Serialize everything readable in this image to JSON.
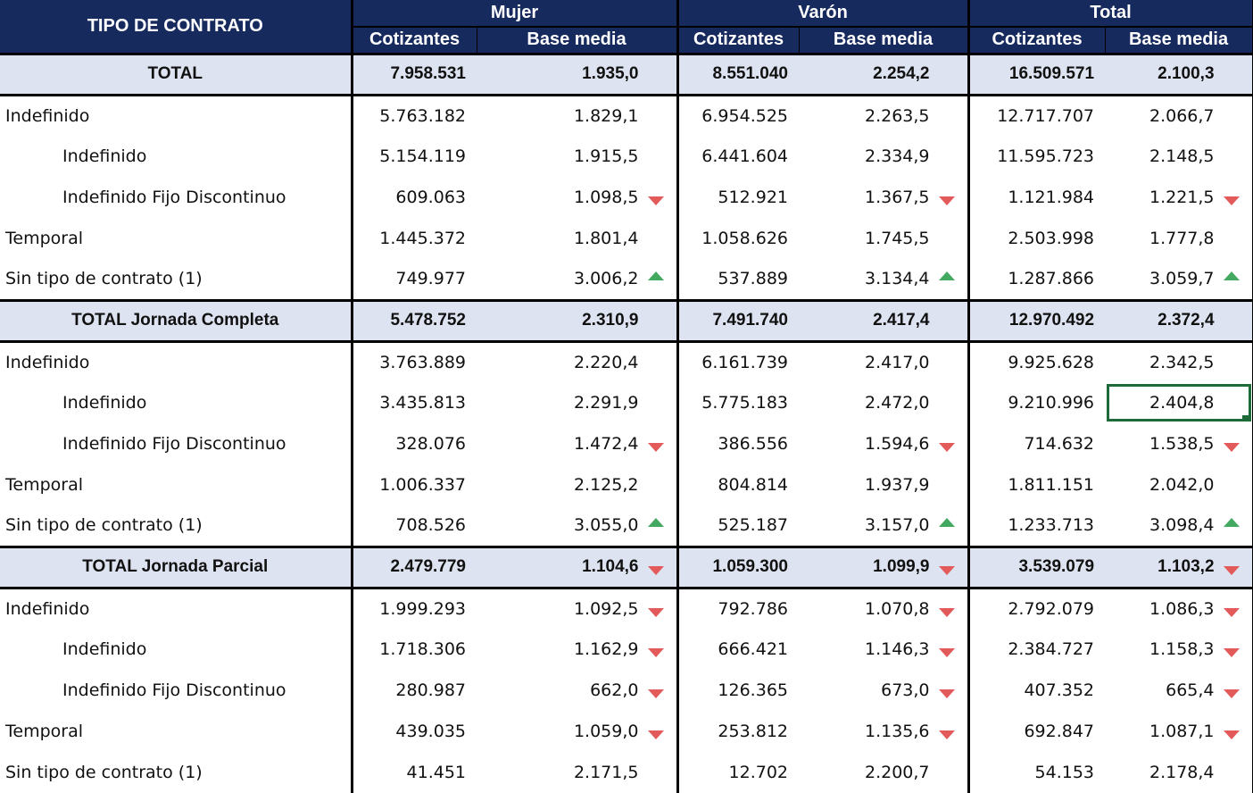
{
  "header": {
    "tipo_label": "TIPO DE CONTRATO",
    "groups": [
      "Mujer",
      "Varón",
      "Total"
    ],
    "sub": [
      "Cotizantes",
      "Base media",
      "Cotizantes",
      "Base media",
      "Cotizantes",
      "Base media"
    ]
  },
  "rows": [
    {
      "label": "TOTAL",
      "kind": "total",
      "vals": [
        "7.958.531",
        "1.935,0",
        "8.551.040",
        "2.254,2",
        "16.509.571",
        "2.100,3"
      ],
      "arrows": [
        "",
        "",
        ""
      ]
    },
    {
      "label": "Indefinido",
      "kind": "row",
      "vals": [
        "5.763.182",
        "1.829,1",
        "6.954.525",
        "2.263,5",
        "12.717.707",
        "2.066,7"
      ],
      "arrows": [
        "",
        "",
        ""
      ]
    },
    {
      "label": "Indefinido",
      "kind": "indent",
      "vals": [
        "5.154.119",
        "1.915,5",
        "6.441.604",
        "2.334,9",
        "11.595.723",
        "2.148,5"
      ],
      "arrows": [
        "",
        "",
        ""
      ]
    },
    {
      "label": "Indefinido Fijo Discontinuo",
      "kind": "indent",
      "vals": [
        "609.063",
        "1.098,5",
        "512.921",
        "1.367,5",
        "1.121.984",
        "1.221,5"
      ],
      "arrows": [
        "down",
        "down",
        "down"
      ]
    },
    {
      "label": "Temporal",
      "kind": "row",
      "vals": [
        "1.445.372",
        "1.801,4",
        "1.058.626",
        "1.745,5",
        "2.503.998",
        "1.777,8"
      ],
      "arrows": [
        "",
        "",
        ""
      ]
    },
    {
      "label": "Sin tipo de contrato (1)",
      "kind": "row",
      "vals": [
        "749.977",
        "3.006,2",
        "537.889",
        "3.134,4",
        "1.287.866",
        "3.059,7"
      ],
      "arrows": [
        "up",
        "up",
        "up"
      ]
    },
    {
      "label": "TOTAL Jornada Completa",
      "kind": "total",
      "vals": [
        "5.478.752",
        "2.310,9",
        "7.491.740",
        "2.417,4",
        "12.970.492",
        "2.372,4"
      ],
      "arrows": [
        "",
        "",
        ""
      ]
    },
    {
      "label": "Indefinido",
      "kind": "row",
      "vals": [
        "3.763.889",
        "2.220,4",
        "6.161.739",
        "2.417,0",
        "9.925.628",
        "2.342,5"
      ],
      "arrows": [
        "",
        "",
        ""
      ]
    },
    {
      "label": "Indefinido",
      "kind": "indent",
      "vals": [
        "3.435.813",
        "2.291,9",
        "5.775.183",
        "2.472,0",
        "9.210.996",
        "2.404,8"
      ],
      "arrows": [
        "",
        "",
        ""
      ],
      "selected": true
    },
    {
      "label": "Indefinido Fijo Discontinuo",
      "kind": "indent",
      "vals": [
        "328.076",
        "1.472,4",
        "386.556",
        "1.594,6",
        "714.632",
        "1.538,5"
      ],
      "arrows": [
        "down",
        "down",
        "down"
      ]
    },
    {
      "label": "Temporal",
      "kind": "row",
      "vals": [
        "1.006.337",
        "2.125,2",
        "804.814",
        "1.937,9",
        "1.811.151",
        "2.042,0"
      ],
      "arrows": [
        "",
        "",
        ""
      ]
    },
    {
      "label": "Sin tipo de contrato (1)",
      "kind": "row",
      "vals": [
        "708.526",
        "3.055,0",
        "525.187",
        "3.157,0",
        "1.233.713",
        "3.098,4"
      ],
      "arrows": [
        "up",
        "up",
        "up"
      ]
    },
    {
      "label": "TOTAL Jornada Parcial",
      "kind": "total",
      "vals": [
        "2.479.779",
        "1.104,6",
        "1.059.300",
        "1.099,9",
        "3.539.079",
        "1.103,2"
      ],
      "arrows": [
        "down",
        "down",
        "down"
      ]
    },
    {
      "label": "Indefinido",
      "kind": "row",
      "vals": [
        "1.999.293",
        "1.092,5",
        "792.786",
        "1.070,8",
        "2.792.079",
        "1.086,3"
      ],
      "arrows": [
        "down",
        "down",
        "down"
      ]
    },
    {
      "label": "Indefinido",
      "kind": "indent",
      "vals": [
        "1.718.306",
        "1.162,9",
        "666.421",
        "1.146,3",
        "2.384.727",
        "1.158,3"
      ],
      "arrows": [
        "down",
        "down",
        "down"
      ]
    },
    {
      "label": "Indefinido Fijo Discontinuo",
      "kind": "indent",
      "vals": [
        "280.987",
        "662,0",
        "126.365",
        "673,0",
        "407.352",
        "665,4"
      ],
      "arrows": [
        "down",
        "down",
        "down"
      ]
    },
    {
      "label": "Temporal",
      "kind": "row",
      "vals": [
        "439.035",
        "1.059,0",
        "253.812",
        "1.135,6",
        "692.847",
        "1.087,1"
      ],
      "arrows": [
        "down",
        "down",
        "down"
      ]
    },
    {
      "label": "Sin tipo de contrato (1)",
      "kind": "row",
      "vals": [
        "41.451",
        "2.171,5",
        "12.702",
        "2.200,7",
        "54.153",
        "2.178,4"
      ],
      "arrows": [
        "",
        "",
        ""
      ]
    }
  ]
}
